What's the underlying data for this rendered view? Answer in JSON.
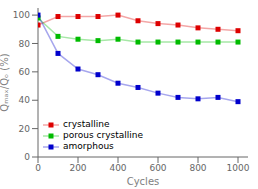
{
  "chart_data": {
    "type": "line",
    "x": [
      0,
      100,
      200,
      300,
      400,
      500,
      600,
      700,
      800,
      900,
      1000
    ],
    "series": [
      {
        "name": "crystalline",
        "color": "#dd0000",
        "marker": "square",
        "values": [
          93,
          99,
          99,
          99,
          100,
          96,
          94,
          93,
          91,
          90,
          89
        ]
      },
      {
        "name": "porous crystalline",
        "color": "#00bb00",
        "marker": "square",
        "values": [
          98,
          85,
          83,
          82,
          83,
          81,
          81,
          81,
          81,
          81,
          81
        ]
      },
      {
        "name": "amorphous",
        "color": "#0000cc",
        "marker": "square",
        "values": [
          100,
          73,
          62,
          58,
          52,
          49,
          45,
          42,
          41,
          42,
          39
        ]
      }
    ],
    "xlabel": "Cycles",
    "ylabel": "Qₘₐₓ/Qₒ (%)",
    "xlim": [
      0,
      1050
    ],
    "ylim": [
      0,
      105
    ],
    "xticks": [
      0,
      200,
      400,
      600,
      800,
      1000
    ],
    "yticks": [
      0,
      20,
      40,
      60,
      80,
      100
    ],
    "legend": "lower left"
  }
}
